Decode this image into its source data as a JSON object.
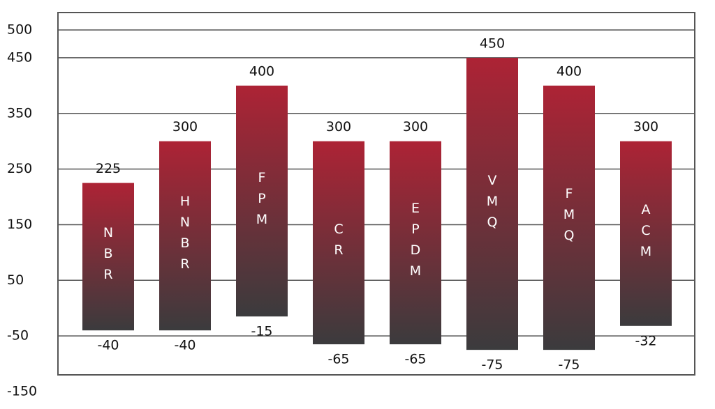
{
  "chart_data": {
    "type": "range-bar",
    "categories": [
      "NBR",
      "HNBR",
      "FPM",
      "CR",
      "EPDM",
      "VMQ",
      "FMQ",
      "ACM"
    ],
    "low": [
      -40,
      -40,
      -15,
      -65,
      -65,
      -75,
      -75,
      -32
    ],
    "high": [
      225,
      300,
      400,
      300,
      300,
      450,
      400,
      300
    ],
    "color_top": "#ad2335",
    "color_bottom": "#3b3b3d",
    "ylim": [
      -150,
      500
    ],
    "yticks": [
      -150,
      -50,
      50,
      150,
      250,
      350,
      450,
      500
    ],
    "grid": true
  }
}
